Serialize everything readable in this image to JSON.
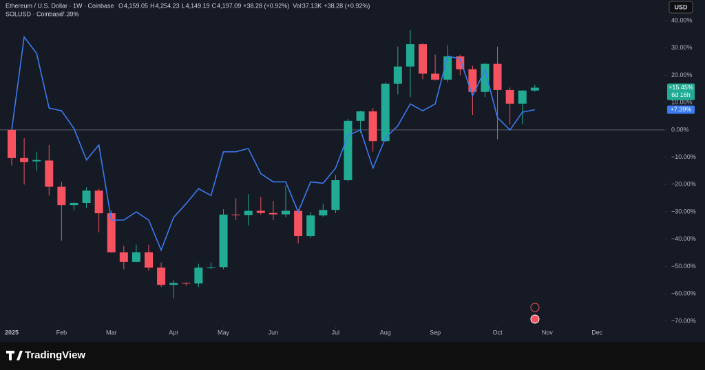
{
  "header": {
    "title": "Ethereum / U.S. Dollar · 1W · Coinbase",
    "fields": [
      {
        "key": "O",
        "value": "4,159.05"
      },
      {
        "key": "H",
        "value": "4,254.23"
      },
      {
        "key": "L",
        "value": "4,149.19"
      },
      {
        "key": "C",
        "value": "4,197.09"
      }
    ],
    "change": "+38.28 (+0.92%)",
    "volume": {
      "key": "Vol",
      "value": "37.13K"
    },
    "volume_change": "+38.28 (+0.92%)",
    "currency": "USD",
    "brand": "TradingView"
  },
  "chart_data": {
    "type": "candlestick",
    "x": [
      0,
      1,
      2,
      3,
      4,
      5,
      6,
      7,
      8,
      9,
      10,
      11,
      12,
      13,
      14,
      15,
      16,
      17,
      18,
      19,
      20,
      21,
      22,
      23,
      24,
      25,
      26,
      27,
      28,
      29,
      30,
      31,
      32,
      33,
      34,
      35,
      36,
      37,
      38,
      39,
      40,
      41,
      42
    ],
    "open": [
      0,
      -10.3,
      -11.5,
      -11.2,
      -20.8,
      -27.5,
      -26.7,
      -22.2,
      -30.5,
      -44.8,
      -48.3,
      -44.8,
      -50.4,
      -56.7,
      -56,
      -56.2,
      -50.4,
      -50.2,
      -31,
      -31.2,
      -29.6,
      -30.4,
      -30.9,
      -29.6,
      -38.8,
      -31.3,
      -29.3,
      -18.4,
      3.3,
      6.8,
      -4.1,
      16.9,
      23.2,
      31.4,
      20.6,
      18.4,
      26.9,
      22.2,
      13.9,
      24.2,
      14.6,
      9.6,
      14.4
    ],
    "high": [
      1,
      -3,
      -8,
      -5.5,
      -19,
      -26.5,
      -21,
      -21.5,
      -29.5,
      -42.5,
      -42,
      -42,
      -48.5,
      -55,
      -55.8,
      -49,
      -48.5,
      -29,
      -25,
      -23.5,
      -24.5,
      -26,
      -20.5,
      -29,
      -30,
      -27,
      -16.5,
      4,
      7,
      8,
      17.5,
      30.5,
      36.5,
      31.8,
      27.5,
      31,
      27.5,
      23.5,
      24.5,
      30.5,
      15.5,
      14.5,
      16.5
    ],
    "low": [
      -13,
      -20,
      -15,
      -24,
      -40.5,
      -29.5,
      -28.5,
      -37.5,
      -45,
      -51,
      -48.5,
      -51.5,
      -57.5,
      -61.5,
      -57,
      -57.5,
      -51,
      -51,
      -33,
      -35,
      -31,
      -33,
      -32,
      -41.5,
      -39.5,
      -31.8,
      -30.5,
      -19,
      -1,
      -8,
      -4.5,
      13,
      12,
      18.5,
      18,
      17.5,
      20,
      5.5,
      12,
      -3.5,
      2,
      2,
      14
    ],
    "close": [
      -10.3,
      -11.8,
      -11,
      -20.8,
      -27.5,
      -26.7,
      -22.2,
      -30.5,
      -44.8,
      -48.3,
      -44.8,
      -50.4,
      -56.7,
      -56,
      -56.2,
      -50.4,
      -50.2,
      -31,
      -31.2,
      -29.6,
      -30.4,
      -30.9,
      -29.6,
      -38.8,
      -31.3,
      -29.3,
      -18.4,
      3.3,
      6.8,
      -4.1,
      16.9,
      23.2,
      31.4,
      20.6,
      18.4,
      26.9,
      22.2,
      13.9,
      24.2,
      14.6,
      9.6,
      14.4,
      15.45
    ],
    "up_color": "#22ab94",
    "down_color": "#f7525f",
    "last_label": "+15.45%",
    "countdown": "6d 16h",
    "line": {
      "name": "SOLUSD · Coinbase",
      "color": "#3a7bf0",
      "legend_value": "7.39%",
      "last_label": "+7.39%",
      "values": [
        0,
        34,
        28,
        8,
        7,
        0.5,
        -11,
        -5.5,
        -33,
        -33,
        -30,
        -33,
        -44,
        -32,
        -27,
        -21.5,
        -24,
        -8,
        -8,
        -6.8,
        -16,
        -19,
        -19,
        -30,
        -19,
        -19.5,
        -14,
        -2,
        0,
        -14,
        -3,
        1.5,
        9.5,
        7,
        9.5,
        27,
        26,
        12.5,
        22,
        4.5,
        0,
        6.5,
        7.39
      ]
    },
    "xlim": [
      -0.94,
      52.4
    ],
    "xticks": [
      {
        "value": 0,
        "label": "2025"
      },
      {
        "value": 4,
        "label": "Feb"
      },
      {
        "value": 8,
        "label": "Mar"
      },
      {
        "value": 13,
        "label": "Apr"
      },
      {
        "value": 17,
        "label": "May"
      },
      {
        "value": 21,
        "label": "Jun"
      },
      {
        "value": 26,
        "label": "Jul"
      },
      {
        "value": 30,
        "label": "Aug"
      },
      {
        "value": 34,
        "label": "Sep"
      },
      {
        "value": 39,
        "label": "Oct"
      },
      {
        "value": 43,
        "label": "Nov"
      },
      {
        "value": 47,
        "label": "Dec"
      }
    ],
    "ylim": [
      -72,
      42
    ],
    "yticks": [
      {
        "value": 40,
        "label": "40.00%"
      },
      {
        "value": 30,
        "label": "30.00%"
      },
      {
        "value": 20,
        "label": "20.00%"
      },
      {
        "value": 10,
        "label": "10.00%"
      },
      {
        "value": 0,
        "label": "0.00%"
      },
      {
        "value": -10,
        "label": "−10.00%"
      },
      {
        "value": -20,
        "label": "−20.00%"
      },
      {
        "value": -30,
        "label": "−30.00%"
      },
      {
        "value": -40,
        "label": "−40.00%"
      },
      {
        "value": -50,
        "label": "−50.00%"
      },
      {
        "value": -60,
        "label": "−60.00%"
      },
      {
        "value": -70,
        "label": "−70.00%"
      }
    ],
    "zero_line": true
  }
}
